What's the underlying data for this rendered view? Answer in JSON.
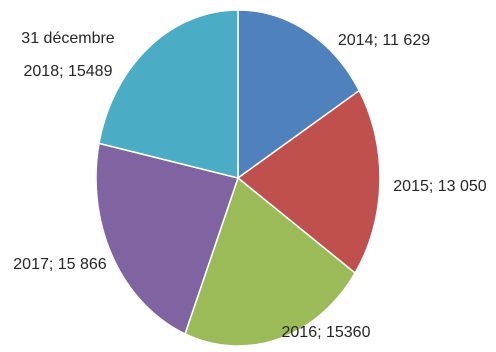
{
  "chart_data": {
    "type": "pie",
    "title": "",
    "legend": "none",
    "slices": [
      {
        "label": "2014; 11 629",
        "value": 11629,
        "color": "#4f81bd"
      },
      {
        "label": "2015; 13 050",
        "value": 13050,
        "color": "#c0504d"
      },
      {
        "label": "2016; 15360",
        "value": 15360,
        "color": "#9bbb59"
      },
      {
        "label": "2017; 15 866",
        "value": 15866,
        "color": "#8064a2"
      },
      {
        "label": [
          "31 décembre",
          "2018; 15489"
        ],
        "value": 15489,
        "color": "#4bacc6"
      }
    ]
  }
}
